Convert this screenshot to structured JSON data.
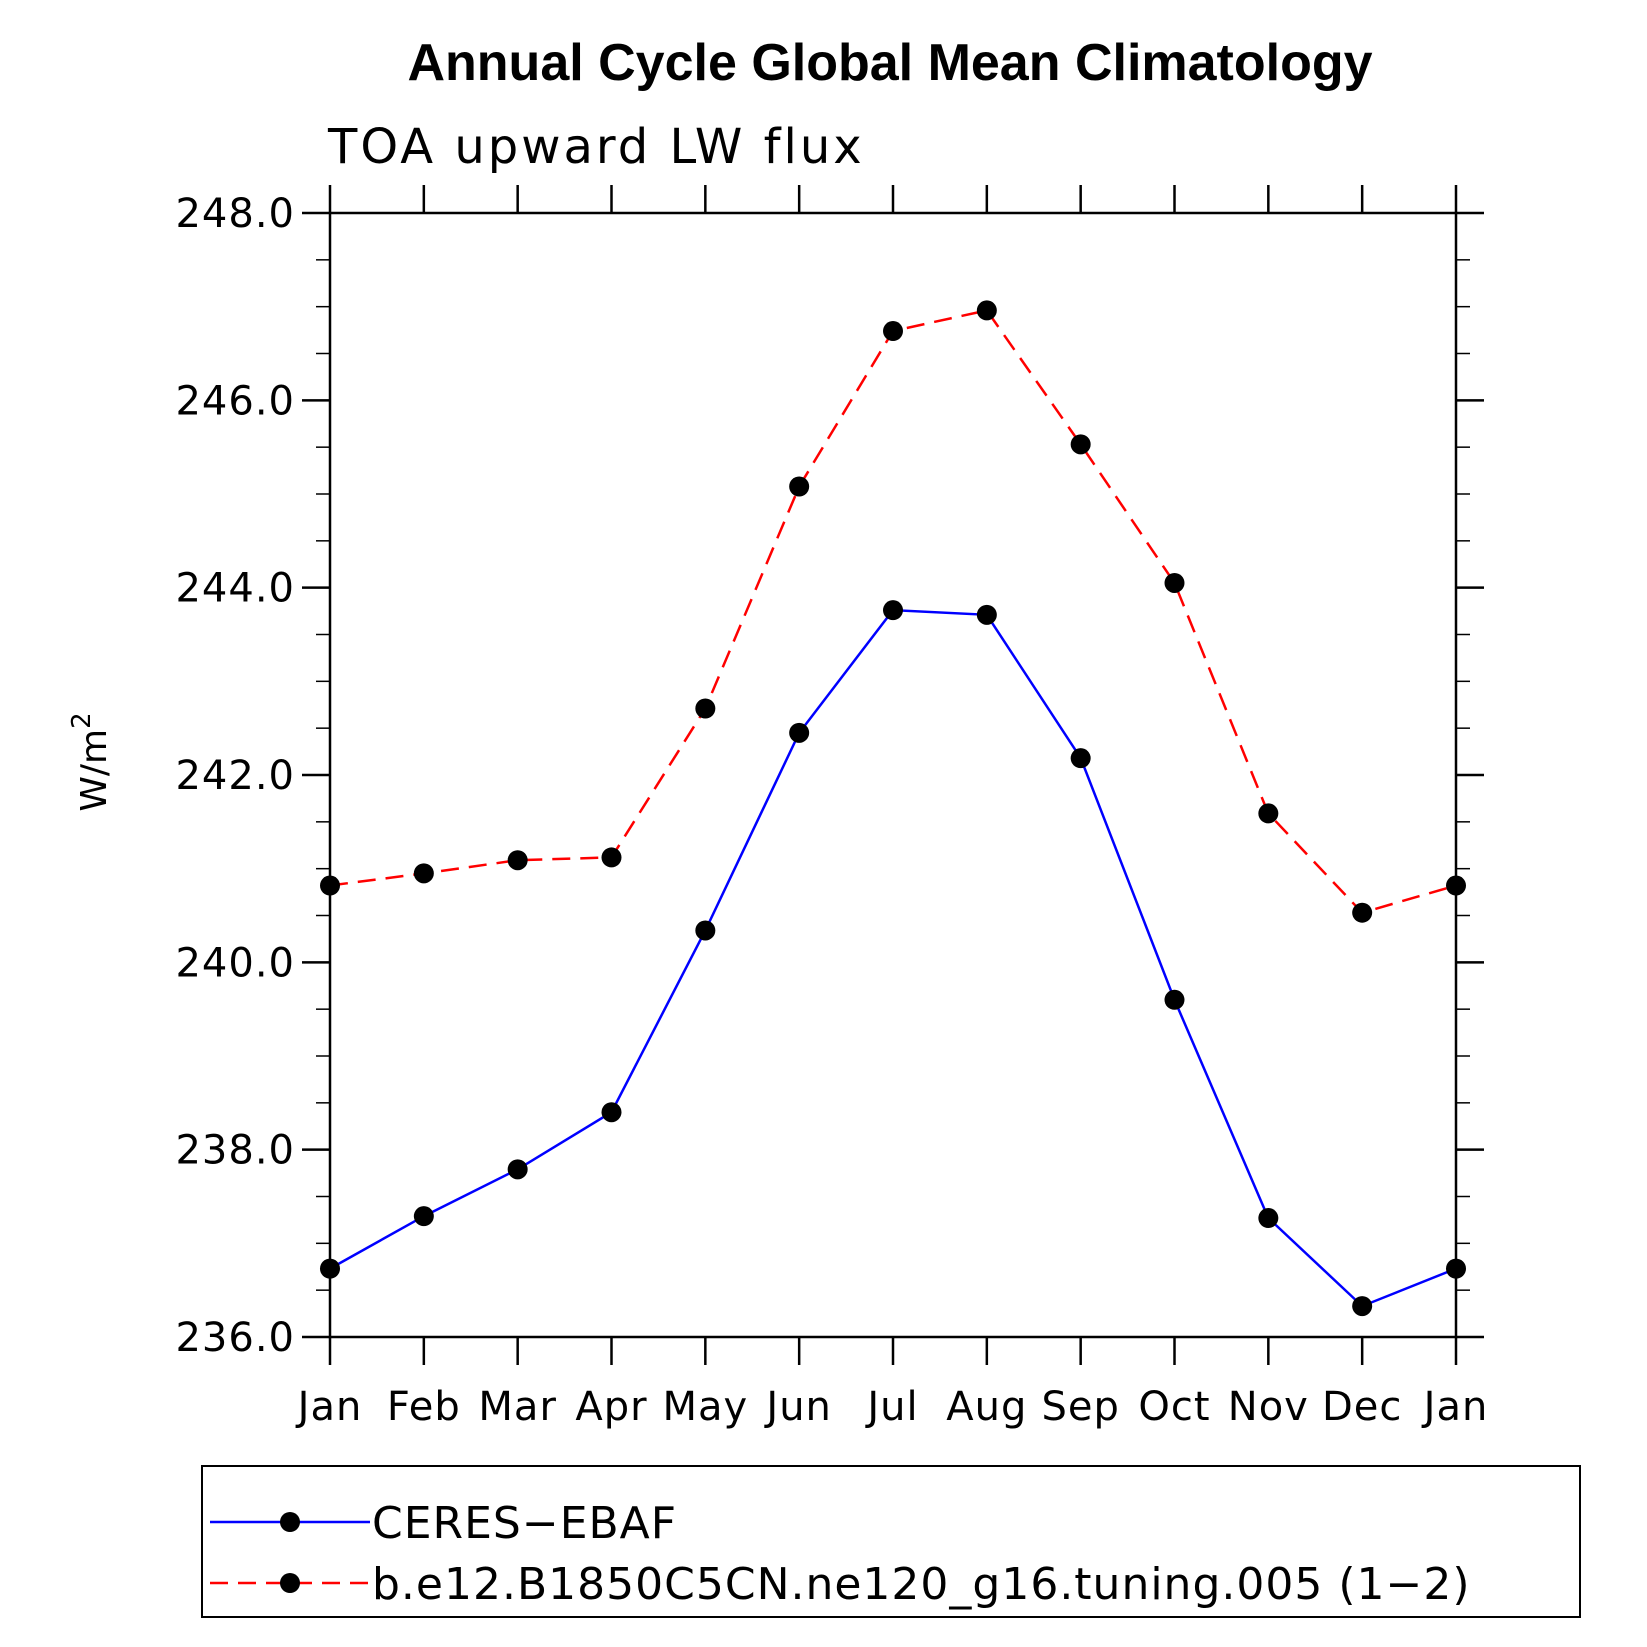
{
  "chart_data": {
    "type": "line",
    "title": "Annual Cycle Global Mean Climatology",
    "subtitle": "TOA upward LW flux",
    "ylabel_base": "W/m",
    "ylabel_sup": "2",
    "ylim": [
      236.0,
      248.0
    ],
    "yticks": [
      236.0,
      238.0,
      240.0,
      242.0,
      244.0,
      246.0,
      248.0
    ],
    "ytick_labels": [
      "236.0",
      "238.0",
      "240.0",
      "242.0",
      "244.0",
      "246.0",
      "248.0"
    ],
    "categories": [
      "Jan",
      "Feb",
      "Mar",
      "Apr",
      "May",
      "Jun",
      "Jul",
      "Aug",
      "Sep",
      "Oct",
      "Nov",
      "Dec",
      "Jan"
    ],
    "series": [
      {
        "name": "CERES−EBAF",
        "color": "#0000ff",
        "dash": "solid",
        "values": [
          236.73,
          237.29,
          237.79,
          238.4,
          240.34,
          242.45,
          243.76,
          243.71,
          242.18,
          239.6,
          237.27,
          236.33,
          236.73
        ]
      },
      {
        "name": "b.e12.B1850C5CN.ne120_g16.tuning.005 (1−2)",
        "color": "#ff0000",
        "dash": "dashed",
        "values": [
          240.82,
          240.95,
          241.09,
          241.12,
          242.71,
          245.08,
          246.74,
          246.96,
          245.53,
          244.05,
          241.59,
          240.53,
          240.82
        ]
      }
    ],
    "marker_color": "#000000",
    "legend_position": "bottom"
  }
}
